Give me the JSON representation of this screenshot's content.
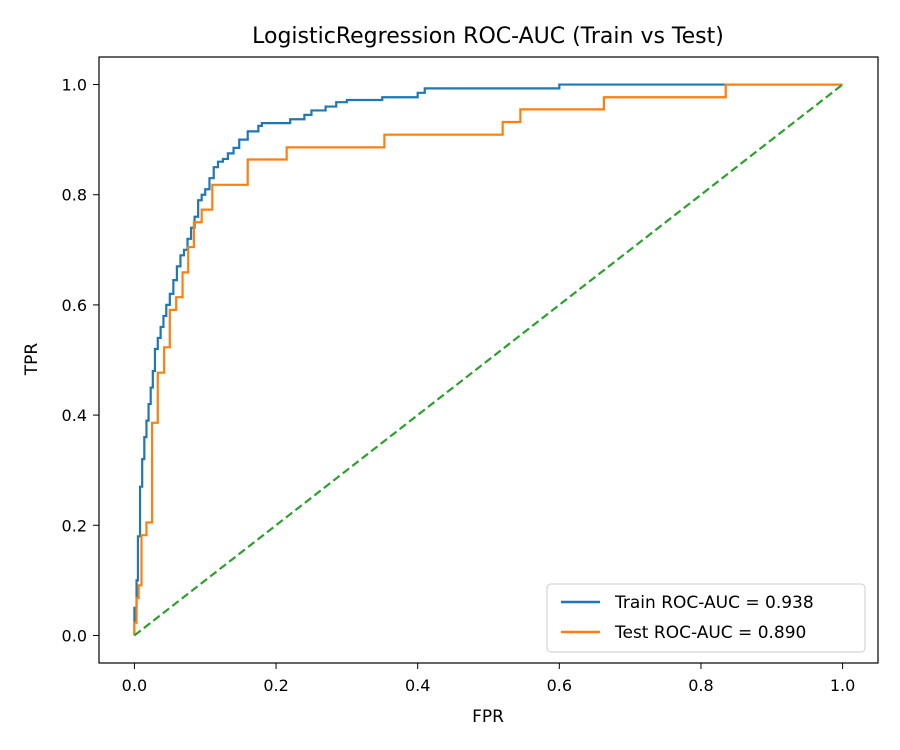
{
  "chart_data": {
    "type": "line",
    "title": "LogisticRegression ROC-AUC (Train vs Test)",
    "xlabel": "FPR",
    "ylabel": "TPR",
    "xlim": [
      -0.05,
      1.05
    ],
    "ylim": [
      -0.05,
      1.05
    ],
    "xticks": [
      "0.0",
      "0.2",
      "0.4",
      "0.6",
      "0.8",
      "1.0"
    ],
    "yticks": [
      "0.0",
      "0.2",
      "0.4",
      "0.6",
      "0.8",
      "1.0"
    ],
    "grid": false,
    "legend_position": "lower-right",
    "series": [
      {
        "name": "Train ROC-AUC = 0.938",
        "color": "#1f77b4",
        "style": "solid",
        "points": [
          [
            0.0,
            0.0
          ],
          [
            0.0,
            0.05
          ],
          [
            0.003,
            0.05
          ],
          [
            0.003,
            0.1
          ],
          [
            0.005,
            0.1
          ],
          [
            0.005,
            0.18
          ],
          [
            0.008,
            0.18
          ],
          [
            0.008,
            0.27
          ],
          [
            0.011,
            0.27
          ],
          [
            0.011,
            0.32
          ],
          [
            0.014,
            0.32
          ],
          [
            0.014,
            0.36
          ],
          [
            0.017,
            0.36
          ],
          [
            0.017,
            0.39
          ],
          [
            0.02,
            0.39
          ],
          [
            0.02,
            0.42
          ],
          [
            0.023,
            0.42
          ],
          [
            0.023,
            0.45
          ],
          [
            0.026,
            0.45
          ],
          [
            0.026,
            0.48
          ],
          [
            0.029,
            0.48
          ],
          [
            0.029,
            0.52
          ],
          [
            0.033,
            0.52
          ],
          [
            0.033,
            0.54
          ],
          [
            0.037,
            0.54
          ],
          [
            0.037,
            0.56
          ],
          [
            0.041,
            0.56
          ],
          [
            0.041,
            0.58
          ],
          [
            0.045,
            0.58
          ],
          [
            0.045,
            0.6
          ],
          [
            0.05,
            0.6
          ],
          [
            0.05,
            0.62
          ],
          [
            0.055,
            0.62
          ],
          [
            0.055,
            0.645
          ],
          [
            0.06,
            0.645
          ],
          [
            0.06,
            0.67
          ],
          [
            0.065,
            0.67
          ],
          [
            0.065,
            0.69
          ],
          [
            0.07,
            0.69
          ],
          [
            0.07,
            0.7
          ],
          [
            0.075,
            0.7
          ],
          [
            0.075,
            0.72
          ],
          [
            0.08,
            0.72
          ],
          [
            0.08,
            0.74
          ],
          [
            0.085,
            0.74
          ],
          [
            0.085,
            0.76
          ],
          [
            0.09,
            0.76
          ],
          [
            0.09,
            0.79
          ],
          [
            0.095,
            0.79
          ],
          [
            0.095,
            0.8
          ],
          [
            0.1,
            0.8
          ],
          [
            0.1,
            0.81
          ],
          [
            0.106,
            0.81
          ],
          [
            0.106,
            0.83
          ],
          [
            0.112,
            0.83
          ],
          [
            0.112,
            0.85
          ],
          [
            0.118,
            0.85
          ],
          [
            0.118,
            0.86
          ],
          [
            0.125,
            0.86
          ],
          [
            0.125,
            0.865
          ],
          [
            0.132,
            0.865
          ],
          [
            0.132,
            0.875
          ],
          [
            0.14,
            0.875
          ],
          [
            0.14,
            0.885
          ],
          [
            0.148,
            0.885
          ],
          [
            0.148,
            0.9
          ],
          [
            0.16,
            0.9
          ],
          [
            0.16,
            0.915
          ],
          [
            0.175,
            0.915
          ],
          [
            0.175,
            0.925
          ],
          [
            0.18,
            0.925
          ],
          [
            0.18,
            0.93
          ],
          [
            0.22,
            0.93
          ],
          [
            0.22,
            0.937
          ],
          [
            0.24,
            0.937
          ],
          [
            0.24,
            0.945
          ],
          [
            0.25,
            0.945
          ],
          [
            0.25,
            0.953
          ],
          [
            0.27,
            0.953
          ],
          [
            0.27,
            0.96
          ],
          [
            0.285,
            0.96
          ],
          [
            0.285,
            0.968
          ],
          [
            0.3,
            0.968
          ],
          [
            0.3,
            0.972
          ],
          [
            0.35,
            0.972
          ],
          [
            0.35,
            0.977
          ],
          [
            0.4,
            0.977
          ],
          [
            0.4,
            0.985
          ],
          [
            0.41,
            0.985
          ],
          [
            0.41,
            0.993
          ],
          [
            0.6,
            0.993
          ],
          [
            0.6,
            1.0
          ],
          [
            0.835,
            1.0
          ],
          [
            1.0,
            1.0
          ]
        ]
      },
      {
        "name": "Test ROC-AUC = 0.890",
        "color": "#ff7f0e",
        "style": "solid",
        "points": [
          [
            0.0,
            0.0
          ],
          [
            0.0,
            0.023
          ],
          [
            0.003,
            0.023
          ],
          [
            0.003,
            0.068
          ],
          [
            0.006,
            0.068
          ],
          [
            0.006,
            0.091
          ],
          [
            0.01,
            0.091
          ],
          [
            0.01,
            0.182
          ],
          [
            0.017,
            0.182
          ],
          [
            0.017,
            0.205
          ],
          [
            0.025,
            0.205
          ],
          [
            0.025,
            0.386
          ],
          [
            0.033,
            0.386
          ],
          [
            0.033,
            0.477
          ],
          [
            0.042,
            0.477
          ],
          [
            0.042,
            0.477
          ],
          [
            0.042,
            0.523
          ],
          [
            0.05,
            0.523
          ],
          [
            0.05,
            0.591
          ],
          [
            0.059,
            0.591
          ],
          [
            0.059,
            0.614
          ],
          [
            0.068,
            0.614
          ],
          [
            0.068,
            0.659
          ],
          [
            0.076,
            0.659
          ],
          [
            0.076,
            0.705
          ],
          [
            0.084,
            0.705
          ],
          [
            0.084,
            0.75
          ],
          [
            0.095,
            0.75
          ],
          [
            0.095,
            0.773
          ],
          [
            0.11,
            0.773
          ],
          [
            0.11,
            0.818
          ],
          [
            0.16,
            0.818
          ],
          [
            0.16,
            0.864
          ],
          [
            0.215,
            0.864
          ],
          [
            0.215,
            0.886
          ],
          [
            0.353,
            0.886
          ],
          [
            0.353,
            0.909
          ],
          [
            0.52,
            0.909
          ],
          [
            0.52,
            0.932
          ],
          [
            0.545,
            0.932
          ],
          [
            0.545,
            0.955
          ],
          [
            0.663,
            0.955
          ],
          [
            0.663,
            0.977
          ],
          [
            0.835,
            0.977
          ],
          [
            0.835,
            1.0
          ],
          [
            1.0,
            1.0
          ]
        ]
      },
      {
        "name": "",
        "color": "#2ca02c",
        "style": "dashed",
        "points": [
          [
            0.0,
            0.0
          ],
          [
            1.0,
            1.0
          ]
        ]
      }
    ]
  }
}
